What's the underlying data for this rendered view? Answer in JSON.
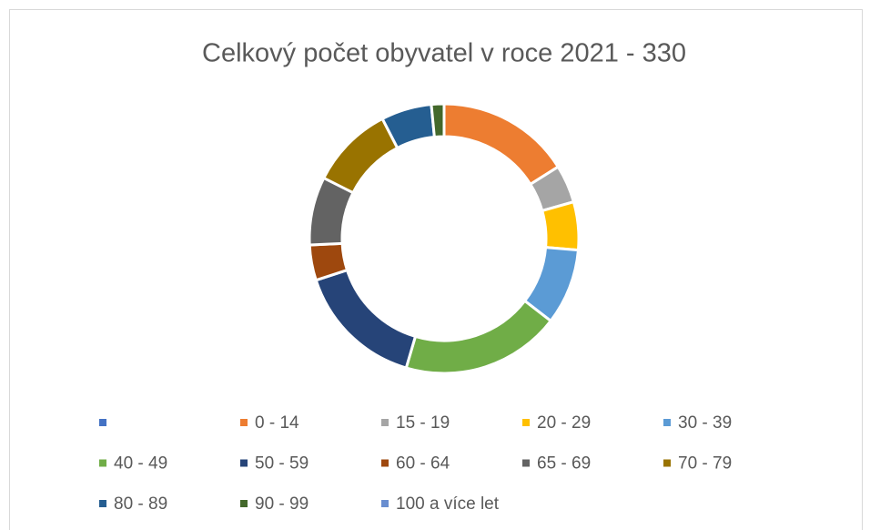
{
  "chart_data": {
    "type": "donut",
    "title": "Celkový počet obyvatel  v roce 2021 - 330",
    "categories": [
      null,
      "0 - 14",
      "15 - 19",
      "20 - 29",
      "30 - 39",
      "40 - 49",
      "50 - 59",
      "60 - 64",
      "65 - 69",
      "70 - 79",
      "80 - 89",
      "90 - 99",
      "100 a více let"
    ],
    "values": [
      0,
      53,
      15,
      19,
      30,
      63,
      51,
      14,
      27,
      33,
      20,
      5,
      0
    ],
    "colors": [
      "#4472c4",
      "#ed7d31",
      "#a5a5a5",
      "#ffc000",
      "#5b9bd5",
      "#70ad47",
      "#264478",
      "#9e480e",
      "#636363",
      "#997300",
      "#255e91",
      "#43682b",
      "#698ed0"
    ],
    "legend": "bottom"
  }
}
